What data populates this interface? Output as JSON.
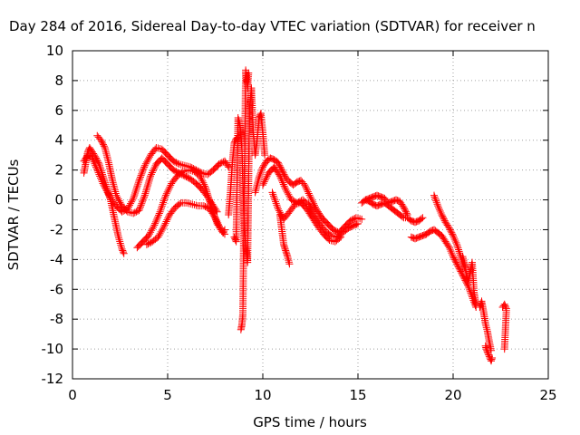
{
  "chart_data": {
    "type": "scatter",
    "title": "Day 284 of 2016, Sidereal Day-to-day VTEC variation (SDTVAR) for receiver n",
    "xlabel": "GPS time / hours",
    "ylabel": "SDTVAR / TECUs",
    "xlim": [
      0,
      25
    ],
    "ylim": [
      -12,
      10
    ],
    "xticks": [
      0,
      5,
      10,
      15,
      20,
      25
    ],
    "yticks": [
      -12,
      -10,
      -8,
      -6,
      -4,
      -2,
      0,
      2,
      4,
      6,
      8,
      10
    ],
    "grid": true,
    "marker": "plus",
    "color": "#ff0000",
    "series": [
      {
        "x": [
          0.6,
          0.7,
          0.8,
          0.9,
          1.0,
          1.2,
          1.4,
          1.6,
          1.8,
          2.0,
          2.2,
          2.4,
          2.6,
          2.7
        ],
        "y": [
          1.8,
          2.5,
          3.2,
          3.5,
          3.3,
          2.9,
          2.4,
          1.6,
          0.8,
          0.0,
          -1.2,
          -2.4,
          -3.3,
          -3.6
        ]
      },
      {
        "x": [
          0.6,
          0.8,
          1.0,
          1.2,
          1.4,
          1.6,
          1.8,
          2.0,
          2.3,
          2.6,
          2.9,
          3.2,
          3.5,
          3.8,
          4.1,
          4.4,
          4.7,
          5.0,
          5.3,
          5.6,
          5.9,
          6.2,
          6.5,
          6.8,
          7.1,
          7.4,
          7.7,
          8.0,
          8.2
        ],
        "y": [
          2.6,
          3.0,
          2.9,
          2.3,
          1.7,
          1.1,
          0.6,
          0.1,
          -0.4,
          -0.8,
          -0.6,
          0.1,
          1.3,
          2.3,
          3.0,
          3.5,
          3.4,
          3.0,
          2.6,
          2.4,
          2.3,
          2.2,
          2.0,
          1.8,
          1.7,
          2.0,
          2.4,
          2.6,
          2.2
        ]
      },
      {
        "x": [
          1.3,
          1.5,
          1.7,
          1.9,
          2.1,
          2.3,
          2.6,
          2.9,
          3.2,
          3.5,
          3.8,
          4.1,
          4.4,
          4.7,
          5.0,
          5.3,
          5.6,
          5.9,
          6.2,
          6.5,
          6.8,
          7.1,
          7.4,
          7.6
        ],
        "y": [
          4.3,
          4.0,
          3.5,
          2.5,
          1.3,
          0.3,
          -0.4,
          -0.8,
          -0.9,
          -0.7,
          0.3,
          1.6,
          2.4,
          2.8,
          2.4,
          2.0,
          1.8,
          1.6,
          1.4,
          1.1,
          0.7,
          0.2,
          -0.4,
          -0.8
        ]
      },
      {
        "x": [
          3.4,
          3.7,
          4.0,
          4.3,
          4.6,
          4.9,
          5.2,
          5.5,
          5.8,
          6.1,
          6.4,
          6.7,
          7.0,
          7.3,
          7.6,
          7.9,
          8.0
        ],
        "y": [
          -3.2,
          -2.8,
          -2.4,
          -1.7,
          -0.8,
          0.3,
          1.1,
          1.6,
          1.9,
          2.0,
          1.9,
          1.6,
          0.8,
          -0.5,
          -1.6,
          -2.2,
          -2.0
        ]
      },
      {
        "x": [
          3.9,
          4.2,
          4.5,
          4.8,
          5.1,
          5.4,
          5.7,
          6.0,
          6.3,
          6.6,
          6.9,
          7.2,
          7.5,
          7.8,
          8.0
        ],
        "y": [
          -3.0,
          -2.8,
          -2.5,
          -1.8,
          -1.0,
          -0.5,
          -0.2,
          -0.2,
          -0.3,
          -0.4,
          -0.4,
          -0.6,
          -1.2,
          -2.0,
          -2.3
        ]
      },
      {
        "x": [
          8.2,
          8.3,
          8.4,
          8.5,
          8.6,
          8.7
        ],
        "y": [
          -1.0,
          0.5,
          2.5,
          3.8,
          4.1,
          4.2
        ]
      },
      {
        "x": [
          8.5,
          8.6,
          8.7,
          8.8,
          8.9,
          9.0,
          9.1,
          9.2,
          9.3,
          9.4,
          9.5,
          9.6,
          9.7,
          9.8,
          9.9,
          10.0,
          10.1
        ],
        "y": [
          -2.5,
          -2.8,
          5.5,
          5.0,
          3.5,
          -1.0,
          -3.0,
          -4.2,
          6.0,
          7.5,
          4.5,
          3.0,
          4.0,
          5.5,
          5.8,
          4.5,
          3.0
        ]
      },
      {
        "x": [
          8.85,
          8.9,
          8.95,
          9.1,
          9.15,
          9.2,
          9.25
        ],
        "y": [
          -8.7,
          -8.4,
          -7.7,
          8.7,
          8.2,
          7.5,
          8.5
        ]
      },
      {
        "x": [
          9.6,
          9.8,
          10.0,
          10.2,
          10.4,
          10.6,
          10.8,
          11.0,
          11.2,
          11.4,
          11.6,
          11.8,
          12.0,
          12.2,
          12.5,
          12.8,
          13.1,
          13.4,
          13.7,
          14.0,
          14.3,
          14.6,
          14.9,
          15.2
        ],
        "y": [
          0.5,
          1.5,
          2.2,
          2.6,
          2.8,
          2.7,
          2.5,
          2.0,
          1.5,
          1.2,
          1.0,
          1.2,
          1.3,
          1.0,
          0.2,
          -0.6,
          -1.2,
          -1.6,
          -2.0,
          -2.2,
          -1.8,
          -1.4,
          -1.2,
          -1.3
        ]
      },
      {
        "x": [
          10.0,
          10.3,
          10.6,
          10.9,
          11.2,
          11.5,
          11.8,
          12.1,
          12.4,
          12.7,
          13.0,
          13.3,
          13.6,
          13.9,
          14.2,
          14.5,
          14.8,
          15.0
        ],
        "y": [
          1.0,
          1.8,
          2.2,
          1.6,
          0.7,
          0.0,
          -0.2,
          0.0,
          -0.3,
          -1.0,
          -1.6,
          -2.1,
          -2.4,
          -2.5,
          -2.2,
          -1.9,
          -1.7,
          -1.6
        ]
      },
      {
        "x": [
          10.5,
          10.8,
          11.1,
          11.4,
          11.7,
          12.0,
          12.3,
          12.6,
          12.9,
          13.2,
          13.5,
          13.8,
          14.1
        ],
        "y": [
          0.5,
          -0.6,
          -1.3,
          -0.8,
          -0.3,
          -0.2,
          -0.6,
          -1.2,
          -1.8,
          -2.3,
          -2.7,
          -2.8,
          -2.5
        ]
      },
      {
        "x": [
          10.9,
          11.0,
          11.1,
          11.2,
          11.3,
          11.4
        ],
        "y": [
          -1.0,
          -2.0,
          -3.0,
          -3.4,
          -3.8,
          -4.3
        ]
      },
      {
        "x": [
          15.2,
          15.4,
          15.6,
          15.8,
          16.0,
          16.2,
          16.4,
          16.6,
          16.8,
          17.0,
          17.2,
          17.4,
          17.6,
          17.8,
          18.0,
          18.2,
          18.4
        ],
        "y": [
          -0.2,
          0.0,
          -0.1,
          -0.3,
          -0.4,
          -0.3,
          -0.2,
          -0.4,
          -0.6,
          -0.8,
          -1.0,
          -1.2,
          -1.2,
          -1.4,
          -1.5,
          -1.4,
          -1.2
        ]
      },
      {
        "x": [
          15.4,
          15.6,
          15.8,
          16.0,
          16.2,
          16.4,
          16.6,
          16.8,
          17.0,
          17.2,
          17.4,
          17.6
        ],
        "y": [
          0.0,
          0.1,
          0.2,
          0.3,
          0.2,
          0.1,
          -0.2,
          -0.1,
          0.0,
          -0.1,
          -0.5,
          -1.0
        ]
      },
      {
        "x": [
          17.8,
          18.0,
          18.2,
          18.4,
          18.6,
          18.8,
          19.0,
          19.2,
          19.4,
          19.6,
          19.8,
          20.0,
          20.2,
          20.4,
          20.6,
          20.8,
          21.0,
          21.2
        ],
        "y": [
          -2.5,
          -2.6,
          -2.5,
          -2.4,
          -2.3,
          -2.1,
          -2.0,
          -2.2,
          -2.4,
          -2.8,
          -3.2,
          -3.8,
          -4.3,
          -4.8,
          -5.3,
          -5.8,
          -6.5,
          -7.2
        ]
      },
      {
        "x": [
          19.0,
          19.2,
          19.4,
          19.6,
          19.8,
          20.0,
          20.2,
          20.4,
          20.6
        ],
        "y": [
          0.3,
          -0.4,
          -1.0,
          -1.5,
          -1.9,
          -2.4,
          -3.0,
          -3.8,
          -4.5
        ]
      },
      {
        "x": [
          20.5,
          20.6,
          20.7,
          20.8,
          20.9,
          21.0,
          21.1,
          21.2
        ],
        "y": [
          -3.8,
          -4.3,
          -5.0,
          -5.5,
          -4.8,
          -4.2,
          -6.2,
          -7.0
        ]
      },
      {
        "x": [
          21.4,
          21.5,
          21.6,
          21.7,
          21.8,
          21.9,
          22.0
        ],
        "y": [
          -7.2,
          -6.8,
          -7.5,
          -8.3,
          -8.8,
          -9.5,
          -10.1
        ]
      },
      {
        "x": [
          21.7,
          21.8,
          21.9,
          22.0,
          22.05
        ],
        "y": [
          -9.8,
          -10.2,
          -10.5,
          -10.8,
          -10.6
        ]
      },
      {
        "x": [
          22.6,
          22.7,
          22.8,
          22.7
        ],
        "y": [
          -7.2,
          -7.0,
          -7.3,
          -10.0
        ]
      }
    ]
  }
}
